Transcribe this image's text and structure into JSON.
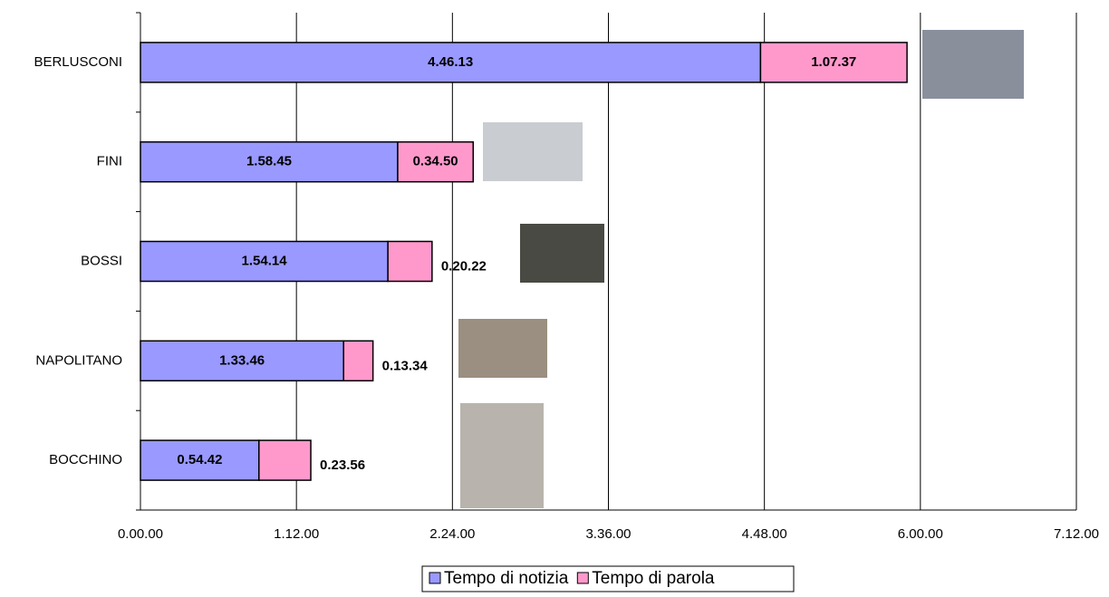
{
  "chart_data": {
    "type": "stacked-bar-horizontal",
    "categories": [
      "BERLUSCONI",
      "FINI",
      "BOSSI",
      "NAPOLITANO",
      "BOCCHINO"
    ],
    "series": [
      {
        "name": "Tempo di notizia",
        "color": "#9999ff",
        "values": [
          17173,
          7125,
          6854,
          5626,
          3282
        ],
        "value_labels": [
          "4.46.13",
          "1.58.45",
          "1.54.14",
          "1.33.46",
          "0.54.42"
        ]
      },
      {
        "name": "Tempo di parola",
        "color": "#ff99cc",
        "values": [
          4057,
          2090,
          1222,
          814,
          1436
        ],
        "value_labels": [
          "1.07.37",
          "0.34.50",
          "0.20.22",
          "0.13.34",
          "0.23.56"
        ]
      }
    ],
    "xlim": [
      0,
      25920
    ],
    "xticks": [
      {
        "value": 0,
        "label": "0.00.00"
      },
      {
        "value": 4320,
        "label": "1.12.00"
      },
      {
        "value": 8640,
        "label": "2.24.00"
      },
      {
        "value": 12960,
        "label": "3.36.00"
      },
      {
        "value": 17280,
        "label": "4.48.00"
      },
      {
        "value": 21600,
        "label": "6.00.00"
      },
      {
        "value": 25920,
        "label": "7.12.00"
      }
    ],
    "grid": true,
    "legend": "bottom"
  }
}
